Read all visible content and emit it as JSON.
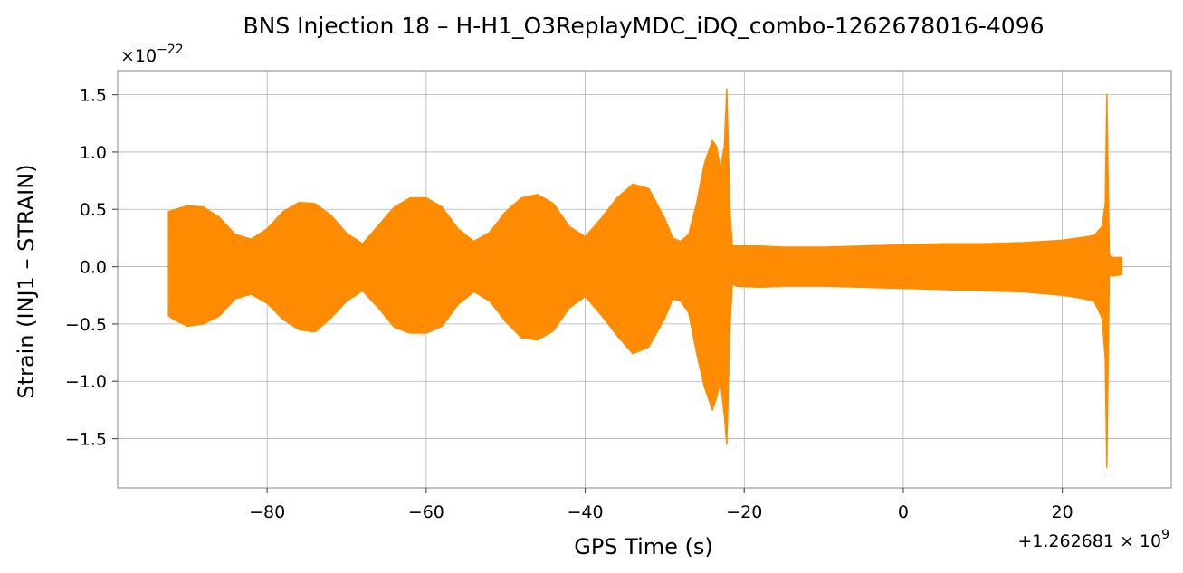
{
  "chart_data": {
    "type": "line",
    "title": "BNS Injection 18 – H-H1_O3ReplayMDC_iDQ_combo-1262678016-4096",
    "xlabel": "GPS Time (s)",
    "ylabel": "Strain (INJ1 – STRAIN)",
    "x_offset_label": "+1.262681",
    "x_offset_exponent_label": "× 10",
    "x_offset_exponent": "9",
    "y_scale_label": "×10",
    "y_scale_exponent": "−22",
    "xlim": [
      -98.8,
      33.7
    ],
    "ylim": [
      -1.93,
      1.71
    ],
    "x_ticks": [
      -80,
      -60,
      -40,
      -20,
      0,
      20
    ],
    "x_tick_labels": [
      "−80",
      "−60",
      "−40",
      "−20",
      "0",
      "20"
    ],
    "y_ticks": [
      -1.5,
      -1.0,
      -0.5,
      0.0,
      0.5,
      1.0,
      1.5
    ],
    "y_tick_labels": [
      "−1.5",
      "−1.0",
      "−0.5",
      "0.0",
      "0.5",
      "1.0",
      "1.5"
    ],
    "grid": true,
    "series": [
      {
        "color": "#ff8c00",
        "envelope": {
          "x": [
            -92.4,
            -91.5,
            -90,
            -88,
            -86,
            -84,
            -82,
            -80,
            -78,
            -76,
            -74,
            -72,
            -70,
            -68,
            -66,
            -64,
            -62,
            -60,
            -58,
            -56,
            -54,
            -52,
            -50,
            -48,
            -46,
            -44,
            -42,
            -40,
            -38,
            -36,
            -34,
            -32,
            -30,
            -29,
            -28,
            -27,
            -26,
            -25,
            -24,
            -23.5,
            -23,
            -22.5,
            -22.2,
            -21.8,
            -21.5,
            -21,
            -18,
            -15,
            -10,
            -5,
            0,
            5,
            10,
            15,
            20,
            22,
            24,
            25,
            25.4,
            25.6,
            25.9,
            26.3,
            27.5
          ],
          "upper": [
            0.48,
            0.5,
            0.53,
            0.52,
            0.43,
            0.28,
            0.24,
            0.33,
            0.48,
            0.56,
            0.55,
            0.45,
            0.29,
            0.2,
            0.36,
            0.52,
            0.6,
            0.6,
            0.52,
            0.33,
            0.22,
            0.3,
            0.48,
            0.6,
            0.63,
            0.55,
            0.35,
            0.26,
            0.42,
            0.6,
            0.72,
            0.68,
            0.42,
            0.25,
            0.22,
            0.28,
            0.55,
            0.9,
            1.1,
            1.05,
            0.85,
            1.05,
            1.55,
            0.5,
            0.18,
            0.18,
            0.18,
            0.17,
            0.17,
            0.18,
            0.19,
            0.2,
            0.2,
            0.21,
            0.23,
            0.25,
            0.27,
            0.35,
            0.55,
            1.5,
            0.1,
            0.08,
            0.08
          ],
          "lower": [
            -0.43,
            -0.47,
            -0.52,
            -0.5,
            -0.43,
            -0.28,
            -0.24,
            -0.32,
            -0.46,
            -0.55,
            -0.57,
            -0.45,
            -0.3,
            -0.21,
            -0.36,
            -0.53,
            -0.58,
            -0.58,
            -0.52,
            -0.33,
            -0.22,
            -0.3,
            -0.48,
            -0.62,
            -0.64,
            -0.56,
            -0.36,
            -0.26,
            -0.42,
            -0.6,
            -0.76,
            -0.7,
            -0.45,
            -0.28,
            -0.3,
            -0.4,
            -0.75,
            -1.05,
            -1.25,
            -1.15,
            -1.0,
            -1.3,
            -1.55,
            -0.55,
            -0.15,
            -0.17,
            -0.18,
            -0.17,
            -0.17,
            -0.18,
            -0.19,
            -0.2,
            -0.21,
            -0.22,
            -0.25,
            -0.27,
            -0.3,
            -0.45,
            -0.8,
            -1.75,
            -0.08,
            -0.08,
            -0.07
          ]
        }
      }
    ]
  }
}
